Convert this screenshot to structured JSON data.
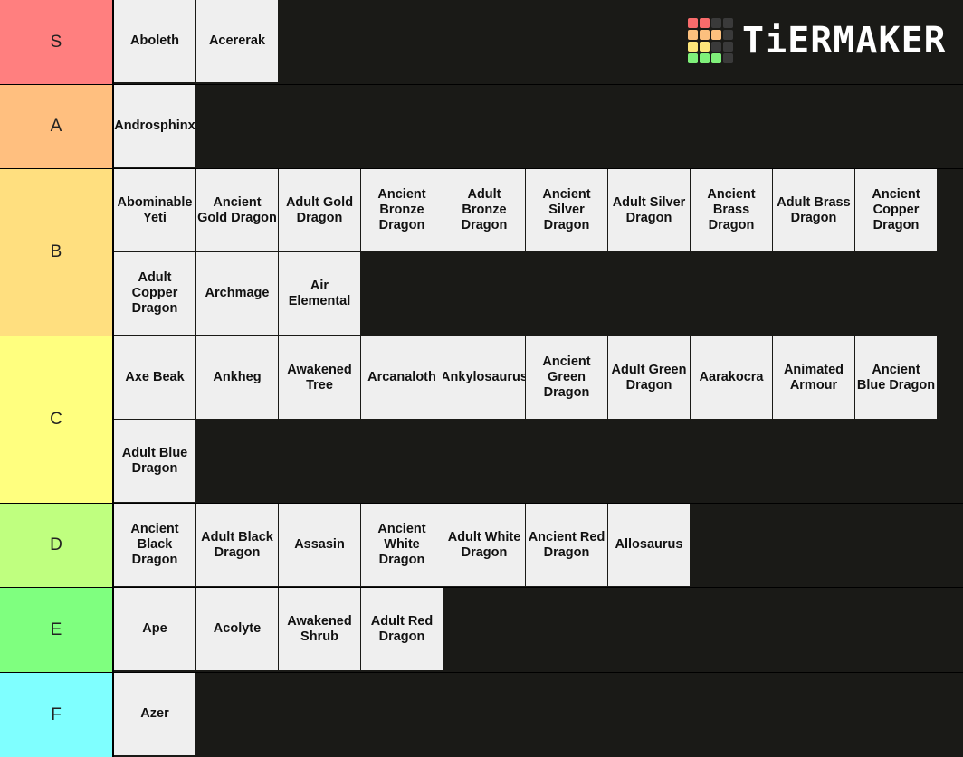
{
  "brand": {
    "name": "TiERMAKER",
    "grid_colors": [
      "#f86b6b",
      "#f86b6b",
      "#3a3a3a",
      "#3a3a3a",
      "#fcc07e",
      "#fcc07e",
      "#fcc07e",
      "#3a3a3a",
      "#fde67a",
      "#fde67a",
      "#3a3a3a",
      "#3a3a3a",
      "#7ff07a",
      "#7ff07a",
      "#7ff07a",
      "#3a3a3a"
    ]
  },
  "tiers": [
    {
      "label": "S",
      "color": "#ff7f7f",
      "items": [
        "Aboleth",
        "Acererak"
      ]
    },
    {
      "label": "A",
      "color": "#ffbf7f",
      "items": [
        "Androsphinx"
      ]
    },
    {
      "label": "B",
      "color": "#ffdf7f",
      "items": [
        "Abominable Yeti",
        "Ancient Gold Dragon",
        "Adult Gold Dragon",
        "Ancient Bronze Dragon",
        "Adult Bronze Dragon",
        "Ancient Silver Dragon",
        "Adult Silver Dragon",
        "Ancient Brass Dragon",
        "Adult Brass Dragon",
        "Ancient Copper Dragon",
        "Adult Copper Dragon",
        "Archmage",
        "Air Elemental"
      ]
    },
    {
      "label": "C",
      "color": "#ffff7f",
      "items": [
        "Axe Beak",
        "Ankheg",
        "Awakened Tree",
        "Arcanaloth",
        "Ankylosaurus",
        "Ancient Green Dragon",
        "Adult Green Dragon",
        "Aarakocra",
        "Animated Armour",
        "Ancient Blue Dragon",
        "Adult Blue Dragon"
      ]
    },
    {
      "label": "D",
      "color": "#bfff7f",
      "items": [
        "Ancient Black Dragon",
        "Adult Black Dragon",
        "Assasin",
        "Ancient White Dragon",
        "Adult White Dragon",
        "Ancient Red Dragon",
        "Allosaurus"
      ]
    },
    {
      "label": "E",
      "color": "#7fff7f",
      "items": [
        "Ape",
        "Acolyte",
        "Awakened Shrub",
        "Adult Red Dragon"
      ]
    },
    {
      "label": "F",
      "color": "#7fffff",
      "items": [
        "Azer"
      ]
    }
  ]
}
